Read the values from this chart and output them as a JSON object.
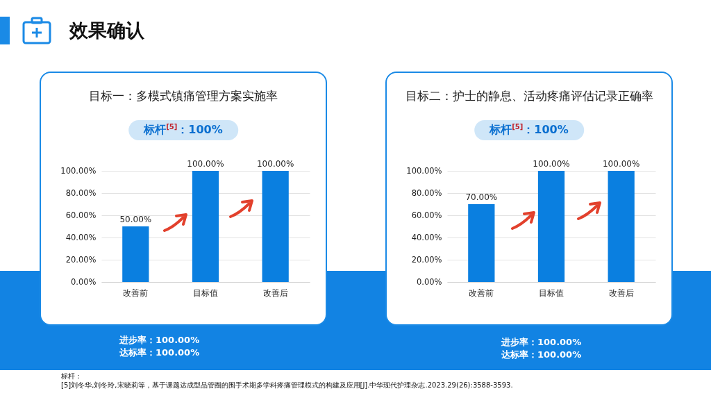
{
  "chart_data": [
    {
      "type": "bar",
      "title": "目标一：多模式镇痛管理方案实施率",
      "subtitle": "标杆$^{[5]}$：100%",
      "categories": [
        "改善前",
        "目标值",
        "改善后"
      ],
      "values": [
        50,
        100,
        100
      ],
      "value_labels": [
        "50.00%",
        "100.00%",
        "100.00%"
      ],
      "color": "#0a7fe0",
      "ylim": [
        0,
        100
      ],
      "yticks": [
        {
          "value": 0,
          "label": "0.00%"
        },
        {
          "value": 20,
          "label": "20.00%"
        },
        {
          "value": 40,
          "label": "40.00%"
        },
        {
          "value": 60,
          "label": "60.00%"
        },
        {
          "value": 80,
          "label": "80.00%"
        },
        {
          "value": 100,
          "label": "100.00%"
        }
      ],
      "grid": "y",
      "annotations": [
        "效果确认",
        "进步率：100.00%",
        "达标率：100.00%",
        "标杆：",
        "[5]刘冬华,刘冬玲,宋晓莉等，基于课题达成型品管圈的围手术期多学科疼痛管理模式的构建及应用[J].中华现代护理杂志.2023.29(26):3588-3593."
      ]
    },
    {
      "type": "bar",
      "title": "目标二：护士的静息、活动疼痛评估记录正确率",
      "subtitle": "标杆$^{[5]}$：100%",
      "categories": [
        "改善前",
        "目标值",
        "改善后"
      ],
      "values": [
        70,
        100,
        100
      ],
      "value_labels": [
        "70.00%",
        "100.00%",
        "100.00%"
      ],
      "color": "#0a7fe0",
      "ylim": [
        0,
        100
      ],
      "yticks": [
        {
          "value": 0,
          "label": "0.00%"
        },
        {
          "value": 20,
          "label": "20.00%"
        },
        {
          "value": 40,
          "label": "40.00%"
        },
        {
          "value": 60,
          "label": "60.00%"
        },
        {
          "value": 80,
          "label": "80.00%"
        },
        {
          "value": 100,
          "label": "100.00%"
        }
      ],
      "grid": "y",
      "annotations": [
        "进步率：100.00%",
        "达标率：100.00%"
      ]
    }
  ]
}
